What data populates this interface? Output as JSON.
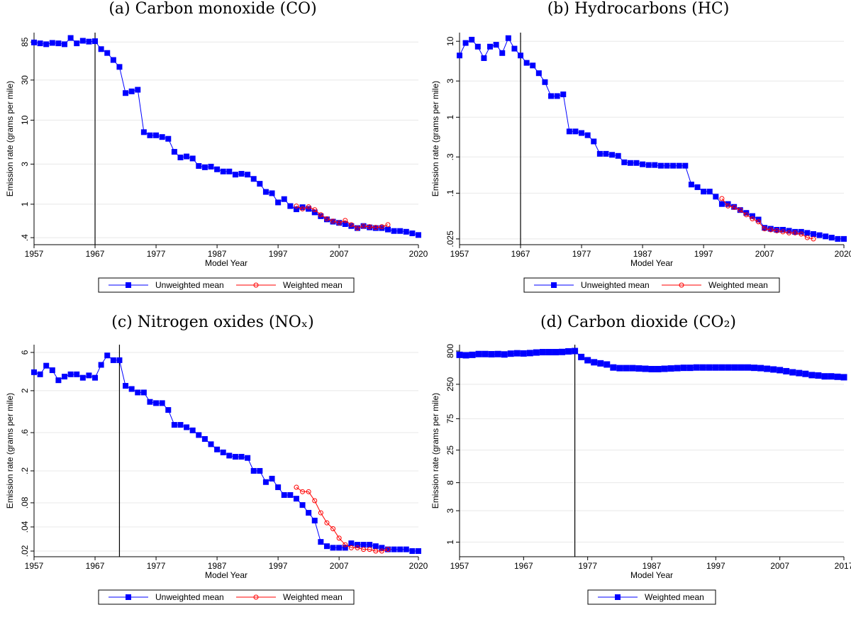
{
  "colors": {
    "unweighted": "#0000ff",
    "weighted": "#ff0000",
    "grid": "#e8e8e8",
    "axis": "#000000"
  },
  "chart_data": [
    {
      "id": "a",
      "type": "line",
      "caption": "(a) Carbon monoxide (CO)",
      "xlabel": "Model Year",
      "ylabel": "Emission rate (grams per mile)",
      "yscale": "log",
      "xlim": [
        1957,
        2020
      ],
      "ylim": [
        0.33,
        110
      ],
      "x_ticks": [
        1957,
        1967,
        1977,
        1987,
        1997,
        2007,
        2020
      ],
      "y_ticks": [
        {
          "value": 0.4,
          "label": ".4"
        },
        {
          "value": 1,
          "label": "1"
        },
        {
          "value": 3,
          "label": "3"
        },
        {
          "value": 10,
          "label": "10"
        },
        {
          "value": 30,
          "label": "30"
        },
        {
          "value": 85,
          "label": "85"
        }
      ],
      "vline": 1967,
      "grid": true,
      "legend": [
        "Unweighted mean",
        "Weighted mean"
      ],
      "series": [
        {
          "name": "Unweighted mean",
          "marker": "square",
          "x": [
            1957,
            1958,
            1959,
            1960,
            1961,
            1962,
            1963,
            1964,
            1965,
            1966,
            1967,
            1968,
            1969,
            1970,
            1971,
            1972,
            1973,
            1974,
            1975,
            1976,
            1977,
            1978,
            1979,
            1980,
            1981,
            1982,
            1983,
            1984,
            1985,
            1986,
            1987,
            1988,
            1989,
            1990,
            1991,
            1992,
            1993,
            1994,
            1995,
            1996,
            1997,
            1998,
            1999,
            2000,
            2001,
            2002,
            2003,
            2004,
            2005,
            2006,
            2007,
            2008,
            2009,
            2010,
            2011,
            2012,
            2013,
            2014,
            2015,
            2016,
            2017,
            2018,
            2019,
            2020
          ],
          "y": [
            84,
            82,
            80,
            83,
            82,
            80,
            95,
            82,
            88,
            86,
            87,
            70,
            63,
            52,
            43,
            21,
            22,
            23,
            7.2,
            6.6,
            6.6,
            6.3,
            6,
            4.2,
            3.6,
            3.7,
            3.5,
            2.85,
            2.75,
            2.8,
            2.6,
            2.45,
            2.45,
            2.25,
            2.3,
            2.25,
            2.0,
            1.75,
            1.4,
            1.35,
            1.05,
            1.15,
            0.95,
            0.87,
            0.92,
            0.88,
            0.8,
            0.72,
            0.66,
            0.62,
            0.6,
            0.58,
            0.55,
            0.52,
            0.55,
            0.53,
            0.52,
            0.52,
            0.5,
            0.48,
            0.48,
            0.47,
            0.45,
            0.43
          ]
        },
        {
          "name": "Weighted mean",
          "marker": "circle",
          "x": [
            2000,
            2001,
            2002,
            2003,
            2004,
            2005,
            2006,
            2007,
            2008,
            2009,
            2010,
            2011,
            2012,
            2013,
            2014,
            2015
          ],
          "y": [
            0.95,
            0.88,
            0.93,
            0.86,
            0.75,
            0.67,
            0.63,
            0.6,
            0.64,
            0.57,
            0.52,
            0.55,
            0.54,
            0.53,
            0.54,
            0.57
          ]
        }
      ]
    },
    {
      "id": "b",
      "type": "line",
      "caption": "(b) Hydrocarbons (HC)",
      "xlabel": "Model Year",
      "ylabel": "Emission rate (grams per mile)",
      "yscale": "log",
      "xlim": [
        1957,
        2020
      ],
      "ylim": [
        0.021,
        13
      ],
      "x_ticks": [
        1957,
        1967,
        1977,
        1987,
        1997,
        2007,
        2020
      ],
      "y_ticks": [
        {
          "value": 0.025,
          "label": ".025"
        },
        {
          "value": 0.1,
          "label": ".1"
        },
        {
          "value": 0.3,
          "label": ".3"
        },
        {
          "value": 1,
          "label": "1"
        },
        {
          "value": 3,
          "label": "3"
        },
        {
          "value": 10,
          "label": "10"
        }
      ],
      "vline": 1967,
      "grid": true,
      "legend": [
        "Unweighted mean",
        "Weighted mean"
      ],
      "series": [
        {
          "name": "Unweighted mean",
          "marker": "square",
          "x": [
            1957,
            1958,
            1959,
            1960,
            1961,
            1962,
            1963,
            1964,
            1965,
            1966,
            1967,
            1968,
            1969,
            1970,
            1971,
            1972,
            1973,
            1974,
            1975,
            1976,
            1977,
            1978,
            1979,
            1980,
            1981,
            1982,
            1983,
            1984,
            1985,
            1986,
            1987,
            1988,
            1989,
            1990,
            1991,
            1992,
            1993,
            1994,
            1995,
            1996,
            1997,
            1998,
            1999,
            2000,
            2001,
            2002,
            2003,
            2004,
            2005,
            2006,
            2007,
            2008,
            2009,
            2010,
            2011,
            2012,
            2013,
            2014,
            2015,
            2016,
            2017,
            2018,
            2019,
            2020
          ],
          "y": [
            6.5,
            9.5,
            10.5,
            8.5,
            6,
            8.5,
            9,
            7,
            11,
            8,
            6.5,
            5.2,
            4.8,
            3.8,
            2.9,
            1.9,
            1.9,
            2.0,
            0.65,
            0.65,
            0.62,
            0.58,
            0.48,
            0.33,
            0.33,
            0.32,
            0.31,
            0.255,
            0.25,
            0.25,
            0.24,
            0.235,
            0.235,
            0.23,
            0.23,
            0.23,
            0.23,
            0.23,
            0.13,
            0.12,
            0.105,
            0.105,
            0.09,
            0.072,
            0.072,
            0.066,
            0.06,
            0.055,
            0.05,
            0.045,
            0.035,
            0.034,
            0.033,
            0.033,
            0.032,
            0.031,
            0.031,
            0.03,
            0.029,
            0.028,
            0.027,
            0.026,
            0.025,
            0.025
          ]
        },
        {
          "name": "Weighted mean",
          "marker": "circle",
          "x": [
            2000,
            2001,
            2002,
            2003,
            2004,
            2005,
            2006,
            2007,
            2008,
            2009,
            2010,
            2011,
            2012,
            2013,
            2014,
            2015
          ],
          "y": [
            0.085,
            0.068,
            0.065,
            0.06,
            0.052,
            0.046,
            0.042,
            0.034,
            0.033,
            0.032,
            0.031,
            0.03,
            0.03,
            0.029,
            0.026,
            0.025
          ]
        }
      ]
    },
    {
      "id": "c",
      "type": "line",
      "caption": "(c) Nitrogen oxides (NOₓ)",
      "xlabel": "Model Year",
      "ylabel": "Emission rate (grams per mile)",
      "yscale": "log",
      "xlim": [
        1957,
        2020
      ],
      "ylim": [
        0.017,
        7.5
      ],
      "x_ticks": [
        1957,
        1967,
        1977,
        1987,
        1997,
        2007,
        2020
      ],
      "y_ticks": [
        {
          "value": 0.02,
          "label": ".02"
        },
        {
          "value": 0.04,
          "label": ".04"
        },
        {
          "value": 0.08,
          "label": ".08"
        },
        {
          "value": 0.2,
          "label": ".2"
        },
        {
          "value": 0.6,
          "label": ".6"
        },
        {
          "value": 2,
          "label": "2"
        },
        {
          "value": 6,
          "label": "6"
        }
      ],
      "vline": 1971,
      "grid": true,
      "legend": [
        "Unweighted mean",
        "Weighted mean"
      ],
      "series": [
        {
          "name": "Unweighted mean",
          "marker": "square",
          "x": [
            1957,
            1958,
            1959,
            1960,
            1961,
            1962,
            1963,
            1964,
            1965,
            1966,
            1967,
            1968,
            1969,
            1970,
            1971,
            1972,
            1973,
            1974,
            1975,
            1976,
            1977,
            1978,
            1979,
            1980,
            1981,
            1982,
            1983,
            1984,
            1985,
            1986,
            1987,
            1988,
            1989,
            1990,
            1991,
            1992,
            1993,
            1994,
            1995,
            1996,
            1997,
            1998,
            1999,
            2000,
            2001,
            2002,
            2003,
            2004,
            2005,
            2006,
            2007,
            2008,
            2009,
            2010,
            2011,
            2012,
            2013,
            2014,
            2015,
            2016,
            2017,
            2018,
            2019,
            2020
          ],
          "y": [
            3.4,
            3.2,
            4.1,
            3.6,
            2.7,
            3.0,
            3.2,
            3.2,
            2.9,
            3.1,
            2.9,
            4.2,
            5.5,
            4.8,
            4.8,
            2.3,
            2.1,
            1.9,
            1.9,
            1.45,
            1.4,
            1.4,
            1.15,
            0.75,
            0.75,
            0.7,
            0.64,
            0.56,
            0.5,
            0.43,
            0.37,
            0.34,
            0.31,
            0.3,
            0.3,
            0.29,
            0.2,
            0.2,
            0.145,
            0.16,
            0.125,
            0.1,
            0.1,
            0.09,
            0.075,
            0.06,
            0.048,
            0.026,
            0.023,
            0.022,
            0.022,
            0.022,
            0.025,
            0.024,
            0.024,
            0.024,
            0.023,
            0.022,
            0.021,
            0.021,
            0.021,
            0.021,
            0.02,
            0.02
          ]
        },
        {
          "name": "Weighted mean",
          "marker": "circle",
          "x": [
            2000,
            2001,
            2002,
            2003,
            2004,
            2005,
            2006,
            2007,
            2008,
            2009,
            2010,
            2011,
            2012,
            2013,
            2014,
            2015
          ],
          "y": [
            0.125,
            0.11,
            0.11,
            0.085,
            0.06,
            0.045,
            0.038,
            0.029,
            0.024,
            0.022,
            0.022,
            0.021,
            0.021,
            0.02,
            0.02,
            0.021
          ]
        }
      ]
    },
    {
      "id": "d",
      "type": "line",
      "caption": "(d) Carbon dioxide (CO₂)",
      "xlabel": "Model Year",
      "ylabel": "Emission rate (grams per mile)",
      "yscale": "log",
      "xlim": [
        1957,
        2017
      ],
      "ylim": [
        0.6,
        1000
      ],
      "x_ticks": [
        1957,
        1967,
        1977,
        1987,
        1997,
        2007,
        2017
      ],
      "y_ticks": [
        {
          "value": 1,
          "label": "1"
        },
        {
          "value": 3,
          "label": "3"
        },
        {
          "value": 8,
          "label": "8"
        },
        {
          "value": 25,
          "label": "25"
        },
        {
          "value": 75,
          "label": "75"
        },
        {
          "value": 250,
          "label": "250"
        },
        {
          "value": 800,
          "label": "800"
        }
      ],
      "vline": 1975,
      "grid": true,
      "legend": [
        "Weighted mean"
      ],
      "series": [
        {
          "name": "Weighted mean",
          "marker": "square",
          "x": [
            1957,
            1958,
            1959,
            1960,
            1961,
            1962,
            1963,
            1964,
            1965,
            1966,
            1967,
            1968,
            1969,
            1970,
            1971,
            1972,
            1973,
            1974,
            1975,
            1976,
            1977,
            1978,
            1979,
            1980,
            1981,
            1982,
            1983,
            1984,
            1985,
            1986,
            1987,
            1988,
            1989,
            1990,
            1991,
            1992,
            1993,
            1994,
            1995,
            1996,
            1997,
            1998,
            1999,
            2000,
            2001,
            2002,
            2003,
            2004,
            2005,
            2006,
            2007,
            2008,
            2009,
            2010,
            2011,
            2012,
            2013,
            2014,
            2015,
            2016,
            2017
          ],
          "y": [
            700,
            690,
            700,
            720,
            720,
            715,
            720,
            710,
            730,
            740,
            735,
            745,
            760,
            770,
            770,
            770,
            775,
            790,
            800,
            650,
            580,
            540,
            520,
            500,
            450,
            440,
            440,
            440,
            435,
            430,
            425,
            425,
            430,
            435,
            440,
            445,
            445,
            450,
            450,
            450,
            450,
            450,
            450,
            450,
            450,
            450,
            445,
            440,
            430,
            420,
            410,
            395,
            380,
            370,
            360,
            345,
            340,
            330,
            330,
            325,
            320
          ]
        }
      ]
    }
  ]
}
